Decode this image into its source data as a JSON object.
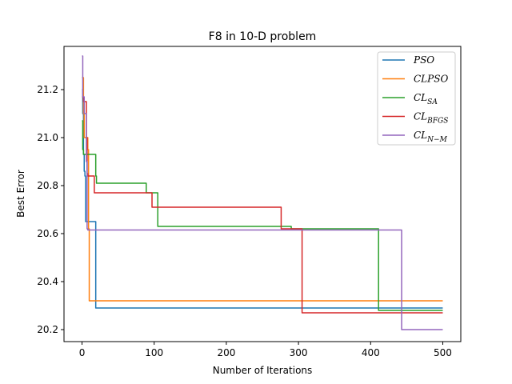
{
  "chart_data": {
    "type": "line",
    "title": "F8 in 10-D problem",
    "xlabel": "Number of Iterations",
    "ylabel": "Best Error",
    "xlim": [
      -25,
      525
    ],
    "ylim": [
      20.15,
      21.38
    ],
    "xticks": [
      0,
      100,
      200,
      300,
      400,
      500
    ],
    "yticks": [
      20.2,
      20.4,
      20.6,
      20.8,
      21.0,
      21.2
    ],
    "ytick_labels": [
      "20.2",
      "20.4",
      "20.6",
      "20.8",
      "21.0",
      "21.2"
    ],
    "legend_position": "top-right",
    "series": [
      {
        "name": "PSO",
        "name_base": "PSO",
        "name_sub": "",
        "color": "#1f77b4",
        "x": [
          0,
          1,
          2,
          3,
          4,
          5,
          18,
          19,
          500
        ],
        "y": [
          21.2,
          21.1,
          20.93,
          20.86,
          20.84,
          20.65,
          20.65,
          20.29,
          20.29
        ]
      },
      {
        "name": "CLPSO",
        "name_base": "CLPSO",
        "name_sub": "",
        "color": "#ff7f0e",
        "x": [
          0,
          1,
          2,
          3,
          4,
          5,
          6,
          8,
          9,
          10,
          500
        ],
        "y": [
          21.25,
          21.25,
          21.1,
          21.0,
          21.0,
          21.0,
          21.0,
          20.95,
          20.62,
          20.32,
          20.32
        ]
      },
      {
        "name": "CLSA",
        "name_base": "CL",
        "name_sub": "SA",
        "color": "#2ca02c",
        "x": [
          0,
          1,
          2,
          3,
          18,
          19,
          20,
          88,
          89,
          104,
          105,
          289,
          290,
          410,
          411,
          500
        ],
        "y": [
          21.07,
          20.95,
          20.93,
          20.93,
          20.93,
          20.84,
          20.81,
          20.81,
          20.77,
          20.77,
          20.63,
          20.63,
          20.62,
          20.62,
          20.28,
          20.28
        ]
      },
      {
        "name": "CLBFGS",
        "name_base": "CL",
        "name_sub": "BFGS",
        "color": "#d62728",
        "x": [
          0,
          2,
          3,
          5,
          6,
          7,
          8,
          9,
          10,
          16,
          17,
          18,
          96,
          97,
          275,
          276,
          304,
          305,
          500
        ],
        "y": [
          21.17,
          21.15,
          21.15,
          21.15,
          21.0,
          20.85,
          20.84,
          20.84,
          20.84,
          20.84,
          20.77,
          20.77,
          20.77,
          20.71,
          20.71,
          20.62,
          20.62,
          20.27,
          20.27
        ]
      },
      {
        "name": "CLN-M",
        "name_base": "CL",
        "name_sub": "N−M",
        "color": "#9467bd",
        "x": [
          0,
          1,
          2,
          3,
          5,
          6,
          7,
          8,
          442,
          443,
          500
        ],
        "y": [
          21.34,
          21.17,
          21.17,
          21.1,
          21.1,
          20.9,
          20.62,
          20.615,
          20.615,
          20.2,
          20.2
        ]
      }
    ]
  }
}
